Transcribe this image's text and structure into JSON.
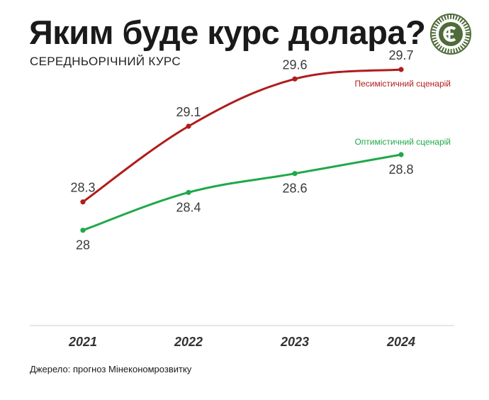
{
  "title": "Яким буде курс долара?",
  "subtitle": "СЕРЕДНЬОРІЧНИЙ КУРС",
  "source": "Джерело: прогноз Мінекономрозвитку",
  "logo": {
    "icon": "circular-seal-logo",
    "color": "#4f6b3a"
  },
  "chart_data": {
    "type": "line",
    "categories": [
      "2021",
      "2022",
      "2023",
      "2024"
    ],
    "series": [
      {
        "name": "Песимістичний сценарій",
        "values": [
          28.3,
          29.1,
          29.6,
          29.7
        ],
        "labels": [
          "28.3",
          "29.1",
          "29.6",
          "29.7"
        ],
        "color": "#b01c1c"
      },
      {
        "name": "Оптимістичний сценарій",
        "values": [
          28,
          28.4,
          28.6,
          28.8
        ],
        "labels": [
          "28",
          "28.4",
          "28.6",
          "28.8"
        ],
        "color": "#1fa84a"
      }
    ],
    "ylim": [
      27.0,
      30.0
    ],
    "grid": false,
    "legend": "inline-right"
  }
}
